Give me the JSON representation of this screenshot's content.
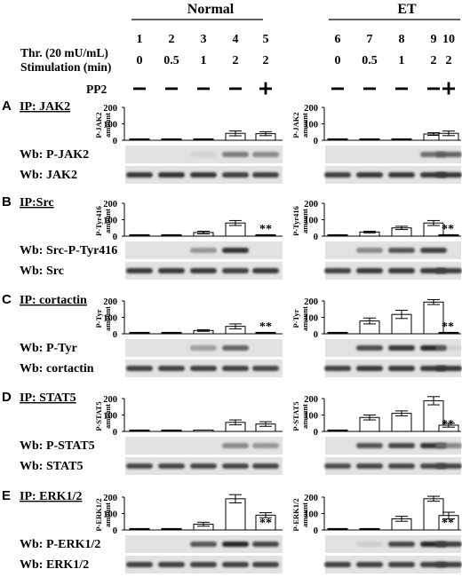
{
  "header": {
    "groups": [
      "Normal",
      "ET"
    ],
    "row_labels": {
      "thrombin": "Thr. (20 mU/mL)",
      "stimulation": "Stimulation (min)",
      "pp2": "PP2"
    },
    "lanes": [
      "1",
      "2",
      "3",
      "4",
      "5",
      "6",
      "7",
      "8",
      "9",
      "10"
    ],
    "times": [
      "0",
      "0.5",
      "1",
      "2",
      "2",
      "0",
      "0.5",
      "1",
      "2",
      "2"
    ],
    "pp2_signs": [
      "−",
      "−",
      "−",
      "−",
      "+",
      "−",
      "−",
      "−",
      "−",
      "+"
    ]
  },
  "panels": [
    {
      "letter": "A",
      "ip": "IP: JAK2",
      "ylabel_top": "P-JAK2",
      "ylabel_bottom": "amount",
      "blot_top": "Wb: P-JAK2",
      "blot_bottom": "Wb: JAK2",
      "axis_ticks": [
        "0",
        "100",
        "200"
      ],
      "normal_marker": "",
      "et_marker": ""
    },
    {
      "letter": "B",
      "ip": "IP:Src",
      "ylabel_top": "P-Tyr416",
      "ylabel_bottom": "amount",
      "blot_top": "Wb: Src-P-Tyr416",
      "blot_bottom": "Wb: Src",
      "axis_ticks": [
        "0",
        "100",
        "200"
      ],
      "normal_marker": "**",
      "et_marker": "**"
    },
    {
      "letter": "C",
      "ip": "IP: cortactin",
      "ylabel_top": "P-Tyr",
      "ylabel_bottom": "amount",
      "blot_top": "Wb: P-Tyr",
      "blot_bottom": "Wb: cortactin",
      "axis_ticks": [
        "0",
        "100",
        "200"
      ],
      "normal_marker": "**",
      "et_marker": "**"
    },
    {
      "letter": "D",
      "ip": "IP: STAT5",
      "ylabel_top": "P-STAT5",
      "ylabel_bottom": "amount",
      "blot_top": "Wb: P-STAT5",
      "blot_bottom": "Wb: STAT5",
      "axis_ticks": [
        "0",
        "100",
        "200"
      ],
      "normal_marker": "",
      "et_marker": "**"
    },
    {
      "letter": "E",
      "ip": "IP: ERK1/2",
      "ylabel_top": "P-ERK1/2",
      "ylabel_bottom": "amount",
      "blot_top": "Wb: P-ERK1/2",
      "blot_bottom": "Wb: ERK1/2",
      "axis_ticks": [
        "0",
        "100",
        "200"
      ],
      "normal_marker": "**",
      "et_marker": "**"
    }
  ],
  "chart_data": [
    {
      "type": "bar",
      "panel": "A",
      "group": "Normal",
      "categories": [
        "1",
        "2",
        "3",
        "4",
        "5"
      ],
      "values": [
        2,
        2,
        3,
        42,
        40
      ],
      "errors": [
        0,
        0,
        0,
        15,
        12
      ],
      "ylim": [
        0,
        200
      ]
    },
    {
      "type": "bar",
      "panel": "A",
      "group": "ET",
      "categories": [
        "6",
        "7",
        "8",
        "9",
        "10"
      ],
      "values": [
        2,
        3,
        4,
        38,
        42
      ],
      "errors": [
        0,
        0,
        0,
        8,
        14
      ],
      "ylim": [
        0,
        200
      ]
    },
    {
      "type": "bar",
      "panel": "B",
      "group": "Normal",
      "categories": [
        "1",
        "2",
        "3",
        "4",
        "5"
      ],
      "values": [
        2,
        3,
        22,
        80,
        4
      ],
      "errors": [
        0,
        0,
        8,
        15,
        0
      ],
      "ylim": [
        0,
        200
      ]
    },
    {
      "type": "bar",
      "panel": "B",
      "group": "ET",
      "categories": [
        "6",
        "7",
        "8",
        "9",
        "10"
      ],
      "values": [
        3,
        25,
        50,
        80,
        4
      ],
      "errors": [
        0,
        5,
        10,
        15,
        0
      ],
      "ylim": [
        0,
        200
      ]
    },
    {
      "type": "bar",
      "panel": "C",
      "group": "Normal",
      "categories": [
        "1",
        "2",
        "3",
        "4",
        "5"
      ],
      "values": [
        2,
        2,
        20,
        45,
        4
      ],
      "errors": [
        0,
        0,
        5,
        15,
        0
      ],
      "ylim": [
        0,
        200
      ]
    },
    {
      "type": "bar",
      "panel": "C",
      "group": "ET",
      "categories": [
        "6",
        "7",
        "8",
        "9",
        "10"
      ],
      "values": [
        3,
        78,
        118,
        193,
        4
      ],
      "errors": [
        0,
        18,
        25,
        15,
        0
      ],
      "ylim": [
        0,
        200
      ]
    },
    {
      "type": "bar",
      "panel": "D",
      "group": "Normal",
      "categories": [
        "1",
        "2",
        "3",
        "4",
        "5"
      ],
      "values": [
        3,
        4,
        8,
        55,
        45
      ],
      "errors": [
        0,
        0,
        0,
        15,
        14
      ],
      "ylim": [
        0,
        200
      ]
    },
    {
      "type": "bar",
      "panel": "D",
      "group": "ET",
      "categories": [
        "6",
        "7",
        "8",
        "9",
        "10"
      ],
      "values": [
        3,
        85,
        110,
        187,
        38
      ],
      "errors": [
        0,
        15,
        15,
        25,
        12
      ],
      "ylim": [
        0,
        200
      ]
    },
    {
      "type": "bar",
      "panel": "E",
      "group": "Normal",
      "categories": [
        "1",
        "2",
        "3",
        "4",
        "5"
      ],
      "values": [
        2,
        3,
        35,
        190,
        90
      ],
      "errors": [
        0,
        0,
        12,
        25,
        15
      ],
      "ylim": [
        0,
        200
      ]
    },
    {
      "type": "bar",
      "panel": "E",
      "group": "ET",
      "categories": [
        "6",
        "7",
        "8",
        "9",
        "10"
      ],
      "values": [
        3,
        4,
        68,
        190,
        88
      ],
      "errors": [
        0,
        0,
        15,
        15,
        20
      ],
      "ylim": [
        0,
        200
      ]
    }
  ],
  "blot_intensity": {
    "A": {
      "top": [
        [
          0,
          0,
          0.05,
          0.55,
          0.5
        ],
        [
          0,
          0,
          0,
          0.6,
          0.65
        ]
      ],
      "bottom": [
        [
          0.9,
          0.95,
          0.9,
          0.85,
          0.85
        ],
        [
          0.85,
          0.9,
          0.9,
          0.9,
          0.9
        ]
      ]
    },
    "B": {
      "top": [
        [
          0,
          0,
          0.45,
          0.95,
          0
        ],
        [
          0,
          0.5,
          0.7,
          0.85,
          0
        ]
      ],
      "bottom": [
        [
          0.9,
          0.9,
          0.9,
          0.85,
          0.9
        ],
        [
          0.85,
          0.9,
          0.9,
          0.9,
          0.85
        ]
      ]
    },
    "C": {
      "top": [
        [
          0,
          0,
          0.4,
          0.65,
          0
        ],
        [
          0,
          0.75,
          0.9,
          1,
          0.05
        ]
      ],
      "bottom": [
        [
          0.85,
          0.85,
          0.85,
          0.85,
          0.8
        ],
        [
          0.85,
          0.9,
          0.9,
          0.9,
          0.9
        ]
      ]
    },
    "D": {
      "top": [
        [
          0,
          0,
          0,
          0.5,
          0.45
        ],
        [
          0,
          0.7,
          0.8,
          0.95,
          0.5
        ]
      ],
      "bottom": [
        [
          0.8,
          0.8,
          0.8,
          0.8,
          0.8
        ],
        [
          0.75,
          0.8,
          0.8,
          0.8,
          0.8
        ]
      ]
    },
    "E": {
      "top": [
        [
          0,
          0,
          0.7,
          1,
          0.8
        ],
        [
          0,
          0.1,
          0.8,
          1,
          0.85
        ]
      ],
      "bottom": [
        [
          0.85,
          0.85,
          0.85,
          0.85,
          0.85
        ],
        [
          0.85,
          0.85,
          0.85,
          0.85,
          0.85
        ]
      ]
    }
  }
}
